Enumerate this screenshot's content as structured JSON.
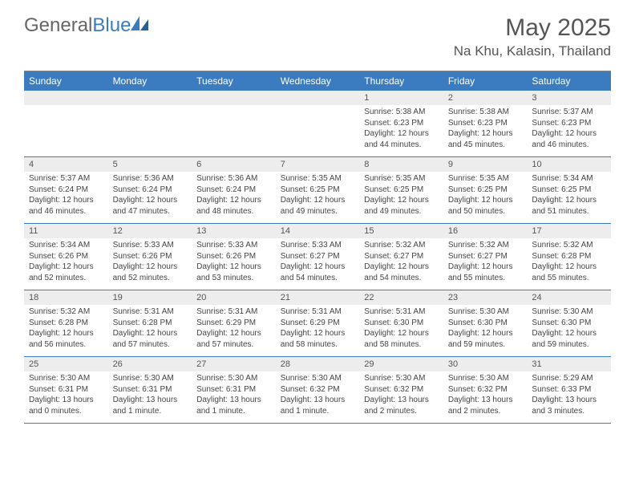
{
  "logo": {
    "text_gray": "General",
    "text_blue": "Blue"
  },
  "title": "May 2025",
  "location": "Na Khu, Kalasin, Thailand",
  "colors": {
    "header_bg": "#3b7bbf",
    "daynum_bg": "#ededed",
    "week_border": "#3b7bbf",
    "text": "#444444"
  },
  "weekdays": [
    "Sunday",
    "Monday",
    "Tuesday",
    "Wednesday",
    "Thursday",
    "Friday",
    "Saturday"
  ],
  "weeks": [
    [
      {
        "num": "",
        "lines": []
      },
      {
        "num": "",
        "lines": []
      },
      {
        "num": "",
        "lines": []
      },
      {
        "num": "",
        "lines": []
      },
      {
        "num": "1",
        "lines": [
          "Sunrise: 5:38 AM",
          "Sunset: 6:23 PM",
          "Daylight: 12 hours and 44 minutes."
        ]
      },
      {
        "num": "2",
        "lines": [
          "Sunrise: 5:38 AM",
          "Sunset: 6:23 PM",
          "Daylight: 12 hours and 45 minutes."
        ]
      },
      {
        "num": "3",
        "lines": [
          "Sunrise: 5:37 AM",
          "Sunset: 6:23 PM",
          "Daylight: 12 hours and 46 minutes."
        ]
      }
    ],
    [
      {
        "num": "4",
        "lines": [
          "Sunrise: 5:37 AM",
          "Sunset: 6:24 PM",
          "Daylight: 12 hours and 46 minutes."
        ]
      },
      {
        "num": "5",
        "lines": [
          "Sunrise: 5:36 AM",
          "Sunset: 6:24 PM",
          "Daylight: 12 hours and 47 minutes."
        ]
      },
      {
        "num": "6",
        "lines": [
          "Sunrise: 5:36 AM",
          "Sunset: 6:24 PM",
          "Daylight: 12 hours and 48 minutes."
        ]
      },
      {
        "num": "7",
        "lines": [
          "Sunrise: 5:35 AM",
          "Sunset: 6:25 PM",
          "Daylight: 12 hours and 49 minutes."
        ]
      },
      {
        "num": "8",
        "lines": [
          "Sunrise: 5:35 AM",
          "Sunset: 6:25 PM",
          "Daylight: 12 hours and 49 minutes."
        ]
      },
      {
        "num": "9",
        "lines": [
          "Sunrise: 5:35 AM",
          "Sunset: 6:25 PM",
          "Daylight: 12 hours and 50 minutes."
        ]
      },
      {
        "num": "10",
        "lines": [
          "Sunrise: 5:34 AM",
          "Sunset: 6:25 PM",
          "Daylight: 12 hours and 51 minutes."
        ]
      }
    ],
    [
      {
        "num": "11",
        "lines": [
          "Sunrise: 5:34 AM",
          "Sunset: 6:26 PM",
          "Daylight: 12 hours and 52 minutes."
        ]
      },
      {
        "num": "12",
        "lines": [
          "Sunrise: 5:33 AM",
          "Sunset: 6:26 PM",
          "Daylight: 12 hours and 52 minutes."
        ]
      },
      {
        "num": "13",
        "lines": [
          "Sunrise: 5:33 AM",
          "Sunset: 6:26 PM",
          "Daylight: 12 hours and 53 minutes."
        ]
      },
      {
        "num": "14",
        "lines": [
          "Sunrise: 5:33 AM",
          "Sunset: 6:27 PM",
          "Daylight: 12 hours and 54 minutes."
        ]
      },
      {
        "num": "15",
        "lines": [
          "Sunrise: 5:32 AM",
          "Sunset: 6:27 PM",
          "Daylight: 12 hours and 54 minutes."
        ]
      },
      {
        "num": "16",
        "lines": [
          "Sunrise: 5:32 AM",
          "Sunset: 6:27 PM",
          "Daylight: 12 hours and 55 minutes."
        ]
      },
      {
        "num": "17",
        "lines": [
          "Sunrise: 5:32 AM",
          "Sunset: 6:28 PM",
          "Daylight: 12 hours and 55 minutes."
        ]
      }
    ],
    [
      {
        "num": "18",
        "lines": [
          "Sunrise: 5:32 AM",
          "Sunset: 6:28 PM",
          "Daylight: 12 hours and 56 minutes."
        ]
      },
      {
        "num": "19",
        "lines": [
          "Sunrise: 5:31 AM",
          "Sunset: 6:28 PM",
          "Daylight: 12 hours and 57 minutes."
        ]
      },
      {
        "num": "20",
        "lines": [
          "Sunrise: 5:31 AM",
          "Sunset: 6:29 PM",
          "Daylight: 12 hours and 57 minutes."
        ]
      },
      {
        "num": "21",
        "lines": [
          "Sunrise: 5:31 AM",
          "Sunset: 6:29 PM",
          "Daylight: 12 hours and 58 minutes."
        ]
      },
      {
        "num": "22",
        "lines": [
          "Sunrise: 5:31 AM",
          "Sunset: 6:30 PM",
          "Daylight: 12 hours and 58 minutes."
        ]
      },
      {
        "num": "23",
        "lines": [
          "Sunrise: 5:30 AM",
          "Sunset: 6:30 PM",
          "Daylight: 12 hours and 59 minutes."
        ]
      },
      {
        "num": "24",
        "lines": [
          "Sunrise: 5:30 AM",
          "Sunset: 6:30 PM",
          "Daylight: 12 hours and 59 minutes."
        ]
      }
    ],
    [
      {
        "num": "25",
        "lines": [
          "Sunrise: 5:30 AM",
          "Sunset: 6:31 PM",
          "Daylight: 13 hours and 0 minutes."
        ]
      },
      {
        "num": "26",
        "lines": [
          "Sunrise: 5:30 AM",
          "Sunset: 6:31 PM",
          "Daylight: 13 hours and 1 minute."
        ]
      },
      {
        "num": "27",
        "lines": [
          "Sunrise: 5:30 AM",
          "Sunset: 6:31 PM",
          "Daylight: 13 hours and 1 minute."
        ]
      },
      {
        "num": "28",
        "lines": [
          "Sunrise: 5:30 AM",
          "Sunset: 6:32 PM",
          "Daylight: 13 hours and 1 minute."
        ]
      },
      {
        "num": "29",
        "lines": [
          "Sunrise: 5:30 AM",
          "Sunset: 6:32 PM",
          "Daylight: 13 hours and 2 minutes."
        ]
      },
      {
        "num": "30",
        "lines": [
          "Sunrise: 5:30 AM",
          "Sunset: 6:32 PM",
          "Daylight: 13 hours and 2 minutes."
        ]
      },
      {
        "num": "31",
        "lines": [
          "Sunrise: 5:29 AM",
          "Sunset: 6:33 PM",
          "Daylight: 13 hours and 3 minutes."
        ]
      }
    ]
  ]
}
